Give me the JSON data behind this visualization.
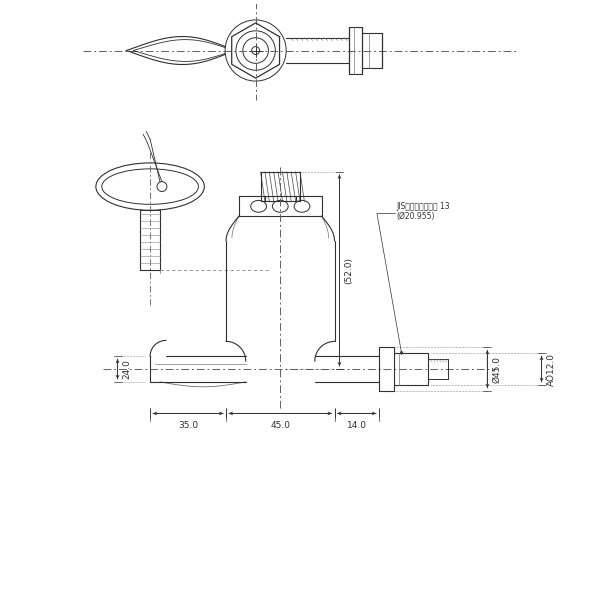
{
  "bg_color": "#ffffff",
  "lc": "#303030",
  "dc": "#303030",
  "thin": "#505050",
  "dash_color": "#505050",
  "annotations": {
    "jis_label": "JIS給水栓取付ねじ 13",
    "jis_dim": "(Ø20.955)",
    "dim_35": "35.0",
    "dim_45": "45.0",
    "dim_14": "14.0",
    "dim_24": "24.0",
    "dim_52": "(52.0)",
    "dim_phi45": "Ø45.0",
    "dim_phi12": "AÖ12.0"
  },
  "fig_w": 6.0,
  "fig_h": 6.0,
  "dpi": 100
}
